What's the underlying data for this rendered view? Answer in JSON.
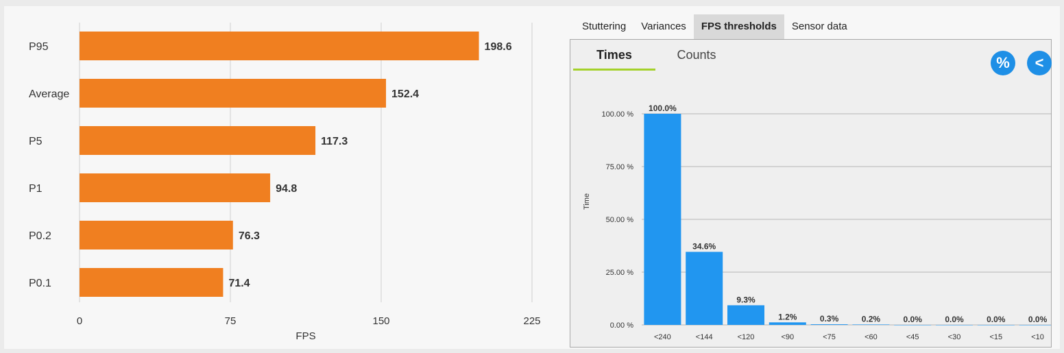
{
  "chart_data": [
    {
      "type": "bar",
      "orientation": "horizontal",
      "categories": [
        "P95",
        "Average",
        "P5",
        "P1",
        "P0.2",
        "P0.1"
      ],
      "values": [
        198.6,
        152.4,
        117.3,
        94.8,
        76.3,
        71.4
      ],
      "value_labels": [
        "198.6",
        "152.4",
        "117.3",
        "94.8",
        "76.3",
        "71.4"
      ],
      "xlabel": "FPS",
      "xlim": [
        0,
        225
      ],
      "xticks": [
        0,
        75,
        150,
        225
      ],
      "xtick_labels": [
        "0",
        "75",
        "150",
        "225"
      ],
      "grid": true,
      "bar_color": "#f07f20"
    },
    {
      "type": "bar",
      "categories": [
        "<240",
        "<144",
        "<120",
        "<90",
        "<75",
        "<60",
        "<45",
        "<30",
        "<15",
        "<10"
      ],
      "values": [
        100.0,
        34.6,
        9.3,
        1.2,
        0.3,
        0.2,
        0.0,
        0.0,
        0.0,
        0.0
      ],
      "value_labels": [
        "100.0%",
        "34.6%",
        "9.3%",
        "1.2%",
        "0.3%",
        "0.2%",
        "0.0%",
        "0.0%",
        "0.0%",
        "0.0%"
      ],
      "ylabel": "Time",
      "ylim": [
        0,
        100
      ],
      "yticks": [
        0,
        25,
        50,
        75,
        100
      ],
      "ytick_labels": [
        "0.00 %",
        "25.00 %",
        "50.00 %",
        "75.00 %",
        "100.00 %"
      ],
      "grid": true,
      "bar_color": "#2196f0"
    }
  ],
  "tabs": [
    "Stuttering",
    "Variances",
    "FPS thresholds",
    "Sensor data"
  ],
  "active_tab": "FPS thresholds",
  "subtabs": {
    "times": "Times",
    "counts": "Counts"
  },
  "buttons": {
    "percent": "%",
    "back": "<"
  }
}
